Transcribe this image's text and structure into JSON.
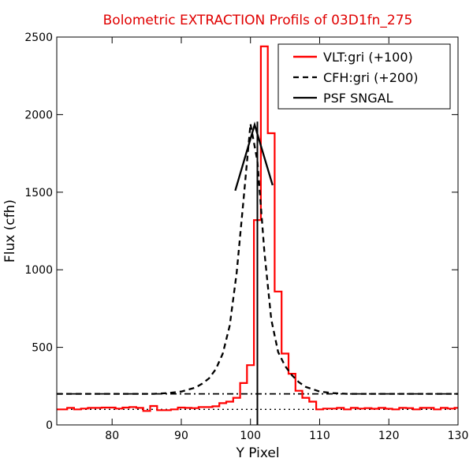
{
  "chart_data": {
    "type": "line",
    "title": "Bolometric EXTRACTION Profils of 03D1fn_275",
    "title_color": "#e00000",
    "xlabel": "Y Pixel",
    "ylabel": "Flux (cfh)",
    "xlim": [
      72,
      130
    ],
    "ylim": [
      0,
      2500
    ],
    "xticks": [
      80,
      90,
      100,
      110,
      120,
      130
    ],
    "yticks": [
      0,
      500,
      1000,
      1500,
      2000,
      2500
    ],
    "grid": false,
    "legend_position": "top-right",
    "vertical_line_x": 101,
    "series": [
      {
        "name": "VLT:gri (+100)",
        "style": "steps",
        "color": "#ff0000",
        "x": [
          72,
          73,
          74,
          75,
          76,
          77,
          78,
          79,
          80,
          81,
          82,
          83,
          84,
          85,
          86,
          87,
          88,
          89,
          90,
          91,
          92,
          93,
          94,
          95,
          96,
          97,
          98,
          99,
          100,
          101,
          102,
          103,
          104,
          105,
          106,
          107,
          108,
          109,
          110,
          111,
          112,
          113,
          114,
          115,
          116,
          117,
          118,
          119,
          120,
          121,
          122,
          123,
          124,
          125,
          126,
          127,
          128,
          129,
          130
        ],
        "y": [
          100,
          100,
          110,
          100,
          105,
          110,
          110,
          112,
          112,
          105,
          112,
          115,
          110,
          90,
          122,
          95,
          95,
          100,
          112,
          110,
          108,
          115,
          115,
          120,
          140,
          150,
          175,
          270,
          385,
          1320,
          2440,
          1880,
          860,
          460,
          330,
          220,
          175,
          150,
          100,
          105,
          105,
          110,
          100,
          110,
          105,
          108,
          104,
          110,
          104,
          100,
          110,
          108,
          100,
          110,
          110,
          100,
          110,
          105,
          110
        ]
      },
      {
        "name": "CFH:gri (+200)",
        "style": "dashed",
        "color": "#000000",
        "x": [
          72,
          74,
          76,
          78,
          80,
          82,
          84,
          86,
          88,
          90,
          92,
          93,
          94,
          95,
          96,
          97,
          98,
          99,
          100,
          101,
          102,
          103,
          104,
          105,
          106,
          107,
          108,
          110,
          112,
          114,
          116,
          118,
          120,
          122,
          124,
          126,
          128,
          130
        ],
        "y": [
          200,
          200,
          200,
          200,
          200,
          200,
          200,
          200,
          205,
          215,
          240,
          265,
          300,
          360,
          460,
          640,
          980,
          1450,
          1940,
          1700,
          1120,
          680,
          470,
          380,
          320,
          275,
          245,
          215,
          205,
          200,
          200,
          200,
          200,
          200,
          200,
          200,
          200,
          200
        ]
      },
      {
        "name": "PSF SNGAL",
        "style": "solid",
        "color": "#000000",
        "x": [
          97.8,
          100.6,
          103.2
        ],
        "y": [
          1510,
          1935,
          1545
        ]
      }
    ],
    "reference_lines": [
      {
        "y": 100,
        "style": "dotted",
        "color": "#000000"
      },
      {
        "y": 200,
        "style": "dotted",
        "color": "#000000"
      },
      {
        "y": 200,
        "style": "dashdot",
        "color": "#000000"
      }
    ]
  }
}
